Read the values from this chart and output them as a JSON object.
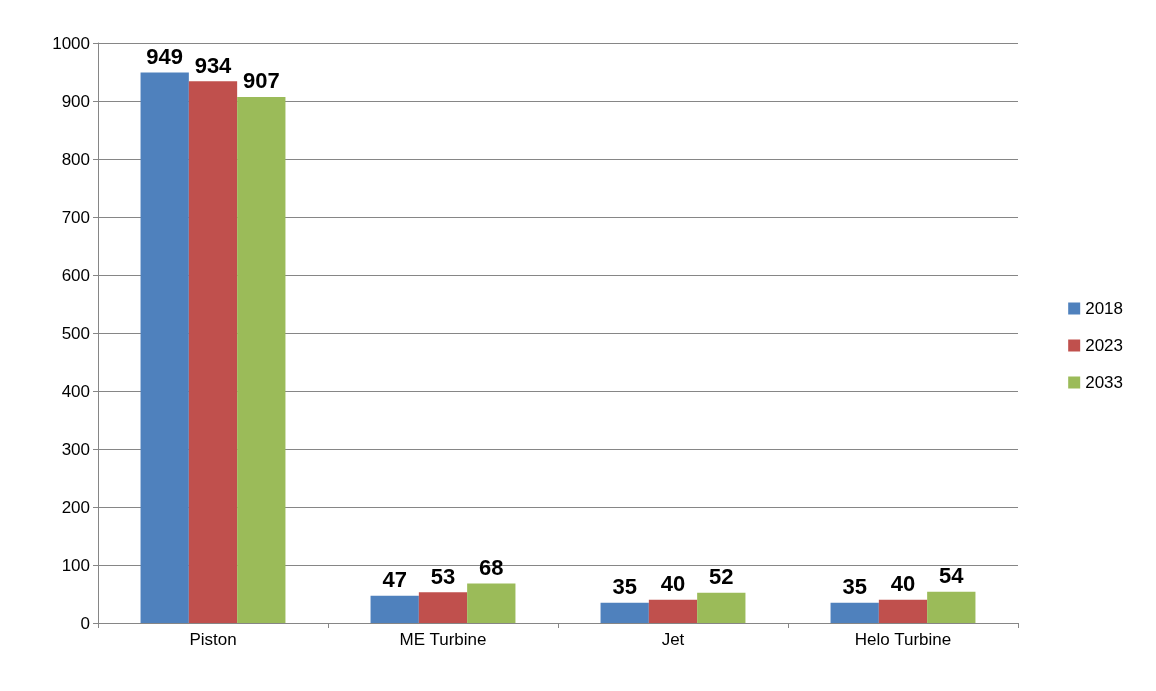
{
  "chart_data": {
    "type": "bar",
    "categories": [
      "Piston",
      "ME Turbine",
      "Jet",
      "Helo Turbine"
    ],
    "series": [
      {
        "name": "2018",
        "color": "#4f81bd",
        "values": [
          949,
          47,
          35,
          35
        ]
      },
      {
        "name": "2023",
        "color": "#c0504d",
        "values": [
          934,
          53,
          40,
          40
        ]
      },
      {
        "name": "2033",
        "color": "#9bbb59",
        "values": [
          907,
          68,
          52,
          54
        ]
      }
    ],
    "ylim": [
      0,
      1000
    ],
    "yticks": [
      0,
      100,
      200,
      300,
      400,
      500,
      600,
      700,
      800,
      900,
      1000
    ],
    "grid": "y",
    "legend": "right",
    "data_labels": true
  }
}
